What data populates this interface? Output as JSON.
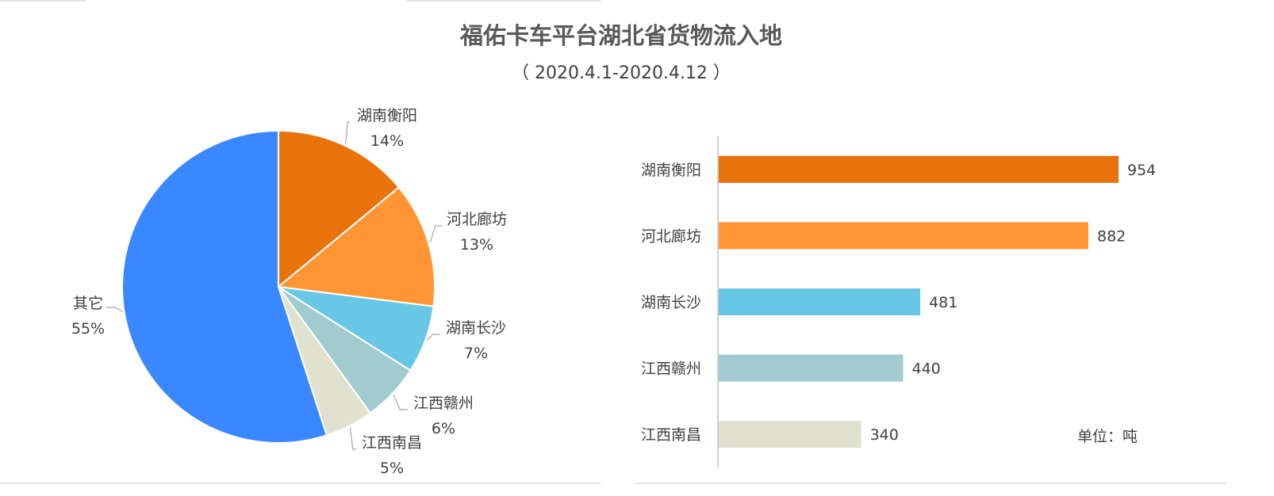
{
  "header": {
    "title": "福佑卡车平台湖北省货物流入地",
    "subtitle": "（ 2020.4.1-2020.4.12 ）"
  },
  "unit_note": "单位：吨",
  "chart_data": [
    {
      "type": "pie",
      "categories": [
        "湖南衡阳",
        "河北廊坊",
        "湖南长沙",
        "江西赣州",
        "江西南昌",
        "其它"
      ],
      "values": [
        14,
        13,
        7,
        6,
        5,
        55
      ],
      "labels": [
        "14%",
        "13%",
        "7%",
        "6%",
        "5%",
        "55%"
      ],
      "colors": [
        "#E8720C",
        "#FF9633",
        "#69C7E6",
        "#A2CBCF",
        "#E0E1CF",
        "#3A88FF"
      ]
    },
    {
      "type": "bar",
      "orientation": "horizontal",
      "categories": [
        "湖南衡阳",
        "河北廊坊",
        "湖南长沙",
        "江西赣州",
        "江西南昌"
      ],
      "values": [
        954,
        882,
        481,
        440,
        340
      ],
      "colors": [
        "#E8720C",
        "#FF9633",
        "#69C7E6",
        "#A2CBCF",
        "#E0E1CF"
      ]
    }
  ]
}
